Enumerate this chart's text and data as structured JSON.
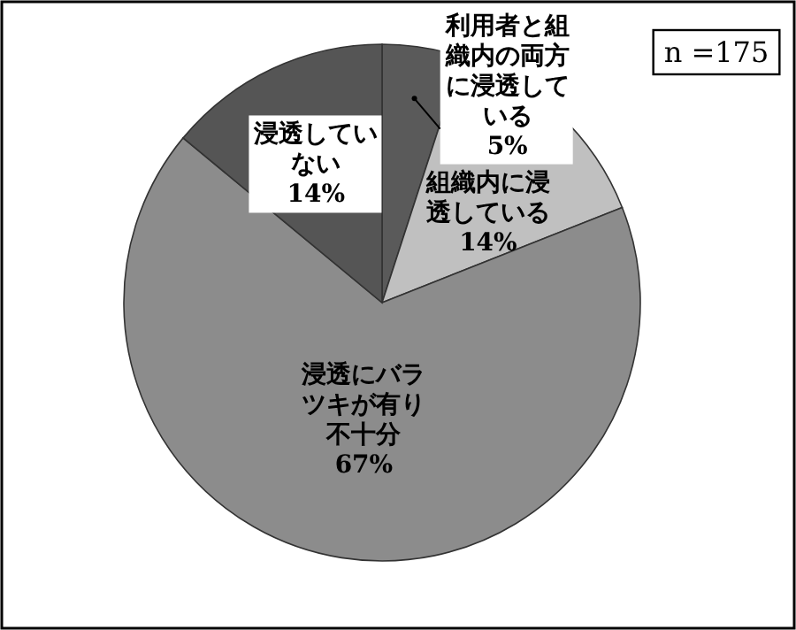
{
  "chart_data": {
    "type": "pie",
    "categories": [
      "利用者と組織内の両方に浸透している",
      "組織内に浸透している",
      "浸透にバラツキが有り不十分",
      "浸透していない"
    ],
    "values": [
      5,
      14,
      67,
      14
    ],
    "colors": [
      "#5a5a5a",
      "#c0c0c0",
      "#8c8c8c",
      "#555555"
    ],
    "value_labels": [
      "5%",
      "14%",
      "67%",
      "14%"
    ],
    "annotations": [
      "n =175"
    ]
  }
}
